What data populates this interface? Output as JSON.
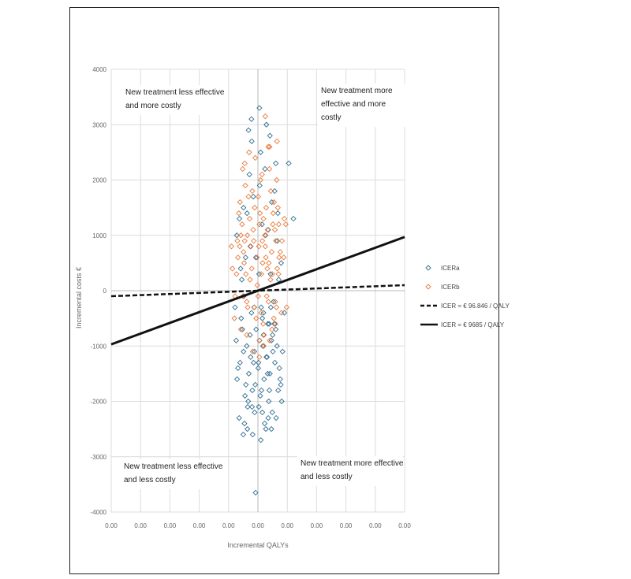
{
  "chart_data": {
    "type": "scatter",
    "title": "",
    "xlabel": "Incremental QALYs",
    "ylabel": "Incremental costs €",
    "x_ticks": [
      "0.00",
      "0.00",
      "0.00",
      "0.00",
      "0.00",
      "0.00",
      "0.00",
      "0.00",
      "0.00",
      "0.00",
      "0.00"
    ],
    "xlim": [
      -0.05,
      0.05
    ],
    "y_ticks": [
      "4000",
      "3000",
      "2000",
      "1000",
      "0",
      "-1000",
      "-2000",
      "-3000",
      "-4000"
    ],
    "ylim": [
      -4000,
      4000
    ],
    "grid": true,
    "legend_position": "right",
    "quadrant_labels": {
      "top_left": [
        "New treatment less effective",
        "and more costly"
      ],
      "top_right": [
        "New treatment more",
        "effective and more",
        "costly"
      ],
      "bottom_left": [
        "New treatment less effective",
        "and less costly"
      ],
      "bottom_right": [
        "New treatment more effective",
        "and less costly"
      ]
    },
    "series": [
      {
        "name": "ICERa",
        "marker": "diamond-open",
        "color": "#2e6f91",
        "points": [
          [
            0.0012,
            -1800
          ],
          [
            -0.0035,
            -2100
          ],
          [
            0.0041,
            -1500
          ],
          [
            0.0005,
            -900
          ],
          [
            -0.0061,
            -1300
          ],
          [
            0.0078,
            -1700
          ],
          [
            0.0023,
            -2400
          ],
          [
            -0.0012,
            -1100
          ],
          [
            0.0034,
            -600
          ],
          [
            -0.0044,
            -1900
          ],
          [
            0.0065,
            -1000
          ],
          [
            0.0001,
            -1400
          ],
          [
            -0.0027,
            -800
          ],
          [
            0.0049,
            -2200
          ],
          [
            -0.0071,
            -1600
          ],
          [
            0.0015,
            -500
          ],
          [
            0.0058,
            -1300
          ],
          [
            -0.0018,
            -2600
          ],
          [
            0.0029,
            -1200
          ],
          [
            -0.0053,
            -700
          ],
          [
            0.0084,
            -1100
          ],
          [
            -0.0009,
            -1700
          ],
          [
            0.0037,
            -2000
          ],
          [
            -0.0038,
            -1000
          ],
          [
            0.0011,
            -300
          ],
          [
            0.0069,
            -1800
          ],
          [
            -0.0064,
            -2300
          ],
          [
            0.0021,
            -1600
          ],
          [
            -0.0022,
            -400
          ],
          [
            0.0046,
            -900
          ],
          [
            -0.0031,
            -1500
          ],
          [
            0.0073,
            -1400
          ],
          [
            0.0003,
            -2100
          ],
          [
            -0.0049,
            -1100
          ],
          [
            0.0056,
            -600
          ],
          [
            -0.0015,
            -1300
          ],
          [
            0.0027,
            -2500
          ],
          [
            -0.0074,
            -900
          ],
          [
            0.0039,
            -1800
          ],
          [
            -0.0006,
            -700
          ],
          [
            0.0081,
            -2000
          ],
          [
            -0.0041,
            -1700
          ],
          [
            0.0017,
            -1000
          ],
          [
            0.0062,
            -2300
          ],
          [
            -0.0025,
            -1200
          ],
          [
            0.0008,
            -1900
          ],
          [
            -0.0057,
            -500
          ],
          [
            0.0033,
            -1500
          ],
          [
            0.0051,
            -1100
          ],
          [
            -0.0011,
            -2200
          ],
          [
            0.0044,
            -300
          ],
          [
            -0.0068,
            -1400
          ],
          [
            0.0019,
            -800
          ],
          [
            -0.0033,
            -2000
          ],
          [
            0.0076,
            -1600
          ],
          [
            0.0002,
            -1300
          ],
          [
            -0.0046,
            -2400
          ],
          [
            0.0061,
            -700
          ],
          [
            -0.0019,
            -1800
          ],
          [
            0.0031,
            -1200
          ],
          [
            0.0014,
            1200
          ],
          [
            -0.0026,
            800
          ],
          [
            0.0047,
            1600
          ],
          [
            -0.0059,
            400
          ],
          [
            0.0071,
            200
          ],
          [
            0.0006,
            1900
          ],
          [
            -0.0037,
            1400
          ],
          [
            0.0053,
            -200
          ],
          [
            -0.0007,
            600
          ],
          [
            0.0024,
            2200
          ],
          [
            -0.0072,
            1000
          ],
          [
            0.0043,
            300
          ],
          [
            -0.0016,
            1700
          ],
          [
            0.0066,
            900
          ],
          [
            -0.0048,
            -100
          ],
          [
            0.0009,
            2500
          ],
          [
            0.0035,
            1100
          ],
          [
            -0.0029,
            2100
          ],
          [
            0.0079,
            500
          ],
          [
            -0.0063,
            1300
          ],
          [
            0.0019,
            -400
          ],
          [
            -0.0042,
            600
          ],
          [
            0.0057,
            1800
          ],
          [
            0.0004,
            300
          ],
          [
            -0.0021,
            2700
          ],
          [
            0.0038,
            -600
          ],
          [
            -0.0055,
            200
          ],
          [
            0.0068,
            1400
          ],
          [
            -0.0013,
            -300
          ],
          [
            0.0026,
            1000
          ],
          [
            0.0005,
            3300
          ],
          [
            -0.0022,
            3100
          ],
          [
            0.0029,
            3000
          ],
          [
            -0.0032,
            2900
          ],
          [
            0.0041,
            2800
          ],
          [
            0.0061,
            2300
          ],
          [
            0.0105,
            2300
          ],
          [
            0.0121,
            1300
          ],
          [
            -0.0049,
            1500
          ],
          [
            -0.0008,
            -3650
          ],
          [
            -0.005,
            -2600
          ],
          [
            0.001,
            -2700
          ],
          [
            0.0046,
            -2500
          ],
          [
            0.0035,
            -2300
          ],
          [
            -0.0036,
            -2500
          ],
          [
            0.0015,
            -2200
          ],
          [
            -0.002,
            -2100
          ],
          [
            0.005,
            -800
          ],
          [
            -0.0078,
            -300
          ],
          [
            0.009,
            -400
          ]
        ]
      },
      {
        "name": "ICERb",
        "marker": "diamond-open",
        "color": "#e8793a",
        "points": [
          [
            0.0012,
            300
          ],
          [
            -0.0024,
            800
          ],
          [
            0.0036,
            -200
          ],
          [
            0.0005,
            1200
          ],
          [
            -0.0047,
            500
          ],
          [
            0.0061,
            900
          ],
          [
            0.0018,
            -600
          ],
          [
            -0.0011,
            1500
          ],
          [
            0.0043,
            200
          ],
          [
            -0.0058,
            1000
          ],
          [
            0.0027,
            600
          ],
          [
            -0.0035,
            -300
          ],
          [
            0.0052,
            1400
          ],
          [
            0.0001,
            -100
          ],
          [
            -0.0019,
            1800
          ],
          [
            0.0066,
            400
          ],
          [
            -0.0062,
            800
          ],
          [
            0.0033,
            1100
          ],
          [
            -0.0006,
            -500
          ],
          [
            0.0047,
            700
          ],
          [
            0.0009,
            2000
          ],
          [
            -0.0041,
            300
          ],
          [
            0.0071,
            1200
          ],
          [
            -0.0028,
            1300
          ],
          [
            0.0021,
            -800
          ],
          [
            0.0055,
            1600
          ],
          [
            -0.0051,
            -100
          ],
          [
            0.0016,
            500
          ],
          [
            -0.0014,
            900
          ],
          [
            0.0039,
            2200
          ],
          [
            -0.0068,
            600
          ],
          [
            0.0063,
            -300
          ],
          [
            0.0003,
            800
          ],
          [
            -0.0032,
            1700
          ],
          [
            0.0049,
            300
          ],
          [
            -0.0009,
            2400
          ],
          [
            0.0024,
            1000
          ],
          [
            -0.0054,
            1200
          ],
          [
            0.0076,
            700
          ],
          [
            0.0011,
            -400
          ],
          [
            -0.0021,
            400
          ],
          [
            0.0044,
            1800
          ],
          [
            -0.0045,
            900
          ],
          [
            0.003,
            -100
          ],
          [
            0.0058,
            1100
          ],
          [
            -0.0003,
            600
          ],
          [
            -0.0073,
            300
          ],
          [
            0.0068,
            1500
          ],
          [
            0.0014,
            2100
          ],
          [
            -0.0038,
            -200
          ],
          [
            0.0037,
            500
          ],
          [
            -0.0016,
            1100
          ],
          [
            0.0054,
            -500
          ],
          [
            0.0007,
            1400
          ],
          [
            -0.0061,
            1600
          ],
          [
            0.0025,
            800
          ],
          [
            -0.0027,
            200
          ],
          [
            0.0072,
            600
          ],
          [
            0.0001,
            1700
          ],
          [
            0.0048,
            -700
          ],
          [
            -0.0049,
            700
          ],
          [
            0.0019,
            1300
          ],
          [
            -0.0012,
            -300
          ],
          [
            0.0064,
            2000
          ],
          [
            -0.0036,
            1000
          ],
          [
            0.0032,
            400
          ],
          [
            0.0006,
            -900
          ],
          [
            -0.0065,
            1400
          ],
          [
            0.0051,
            1200
          ],
          [
            -0.0002,
            100
          ],
          [
            0.0082,
            900
          ],
          [
            -0.0078,
            -100
          ],
          [
            0.004,
            2600
          ],
          [
            -0.003,
            2500
          ],
          [
            0.0059,
            -200
          ],
          [
            0.0015,
            900
          ],
          [
            -0.0043,
            1900
          ],
          [
            0.0028,
            1500
          ],
          [
            -0.007,
            900
          ],
          [
            0.007,
            300
          ],
          [
            -0.0045,
            2300
          ],
          [
            -0.0052,
            2200
          ],
          [
            0.0065,
            2700
          ],
          [
            0.0035,
            2600
          ],
          [
            0.0025,
            3150
          ],
          [
            0.0095,
            1200
          ],
          [
            0.009,
            1300
          ],
          [
            -0.009,
            800
          ],
          [
            -0.0087,
            400
          ],
          [
            0.0098,
            -300
          ],
          [
            0.008,
            -400
          ],
          [
            -0.008,
            -500
          ],
          [
            0.006,
            -600
          ],
          [
            -0.0058,
            -700
          ],
          [
            0.004,
            -900
          ],
          [
            -0.0038,
            -800
          ],
          [
            0.002,
            -1000
          ],
          [
            -0.0018,
            -1100
          ],
          [
            0.0005,
            -1200
          ],
          [
            0.0088,
            600
          ]
        ]
      },
      {
        "name": "ICER = € 96.846 / QALY",
        "type": "line",
        "style": "dashed",
        "color": "#111111",
        "x": [
          -0.05,
          0.05
        ],
        "y": [
          -100,
          100
        ]
      },
      {
        "name": "ICER = € 9685 / QALY",
        "type": "line",
        "style": "solid",
        "color": "#111111",
        "x": [
          -0.05,
          0.05
        ],
        "y": [
          -970,
          970
        ]
      }
    ]
  }
}
